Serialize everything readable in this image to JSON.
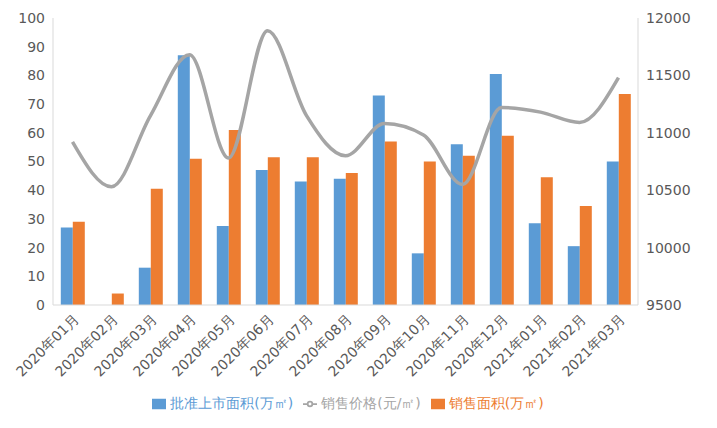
{
  "chart_data": {
    "type": "bar",
    "categories": [
      "2020年01月",
      "2020年02月",
      "2020年03月",
      "2020年04月",
      "2020年05月",
      "2020年06月",
      "2020年07月",
      "2020年08月",
      "2020年09月",
      "2020年10月",
      "2020年11月",
      "2020年12月",
      "2021年01月",
      "2021年02月",
      "2021年03月"
    ],
    "series": [
      {
        "name": "批准上市面积(万㎡)",
        "type": "bar",
        "color": "#5b9bd5",
        "values": [
          27,
          0,
          13,
          87,
          27.5,
          47,
          43,
          44,
          73,
          18,
          56,
          80.5,
          28.5,
          20.5,
          50
        ]
      },
      {
        "name": "销售面积(万㎡)",
        "type": "bar",
        "color": "#ed7d31",
        "values": [
          29,
          4,
          40.5,
          51,
          61,
          51.5,
          51.5,
          46,
          57,
          50,
          52,
          59,
          44.5,
          34.5,
          73.5
        ]
      },
      {
        "name": "销售价格(元/㎡)",
        "type": "line",
        "axis": "y2",
        "color": "#a5a5a5",
        "line_style": "smooth",
        "values": [
          10920,
          10530,
          11150,
          11680,
          10780,
          11890,
          11150,
          10800,
          11080,
          10980,
          10550,
          11220,
          11180,
          11090,
          11480
        ]
      }
    ],
    "ylim": [
      0,
      100
    ],
    "yticks": [
      0,
      10,
      20,
      30,
      40,
      50,
      60,
      70,
      80,
      90,
      100
    ],
    "y2lim": [
      9500,
      12000
    ],
    "y2ticks": [
      9500,
      10000,
      10500,
      11000,
      11500,
      12000
    ],
    "grid": false,
    "legend": "bottom"
  }
}
